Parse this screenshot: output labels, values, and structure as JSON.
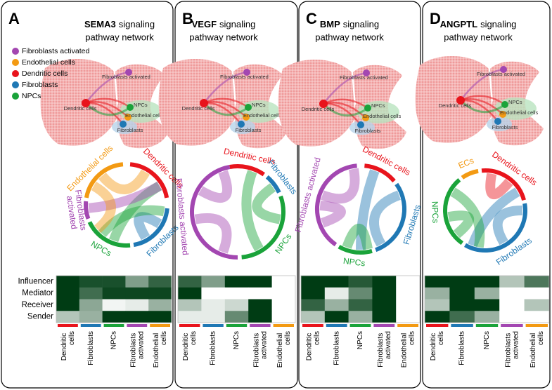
{
  "legend": [
    {
      "label": "Fibroblasts activated",
      "color": "#a347b1"
    },
    {
      "label": "Endothelial cells",
      "color": "#f39a13"
    },
    {
      "label": "Dendritic cells",
      "color": "#e8141c"
    },
    {
      "label": "Fibroblasts",
      "color": "#1f78b4"
    },
    {
      "label": "NPCs",
      "color": "#1aa33a"
    }
  ],
  "heatmap_rows": [
    "Influencer",
    "Mediator",
    "Receiver",
    "Sender"
  ],
  "panels": [
    {
      "letter": "A",
      "title_bold": "SEMA3",
      "title_rest": "signaling",
      "title_line2": "pathway network",
      "map_labels": [
        "Fibroblasts activated",
        "Dendritic cells",
        "NPCs",
        "Endothelial cells",
        "Fibroblasts"
      ],
      "chord_labels": [
        {
          "text": "Endothelial cells",
          "color": "#f39a13"
        },
        {
          "text": "Dendritic cells",
          "color": "#e8141c"
        },
        {
          "text": "Fibroblasts",
          "color": "#1f78b4"
        },
        {
          "text": "NPCs",
          "color": "#1aa33a"
        },
        {
          "text": "Fibroblasts activated",
          "color": "#a347b1"
        }
      ],
      "heatmap": {
        "columns": [
          {
            "label": "Dendritic cells",
            "color": "#e8141c"
          },
          {
            "label": "Fibroblasts",
            "color": "#1f78b4"
          },
          {
            "label": "NPCs",
            "color": "#1aa33a"
          },
          {
            "label": "Fibroblasts activated",
            "color": "#a347b1"
          },
          {
            "label": "Endothelial cells",
            "color": "#f39a13"
          }
        ],
        "values": [
          [
            1,
            0.9,
            0.9,
            0.5,
            0.8
          ],
          [
            1,
            0.75,
            0.95,
            0.95,
            0.95
          ],
          [
            1,
            0.45,
            0.05,
            0.1,
            0.4
          ],
          [
            0.3,
            0.4,
            1,
            1,
            1
          ]
        ]
      }
    },
    {
      "letter": "B",
      "title_bold": "VEGF",
      "title_rest": "signaling",
      "title_line2": "pathway network",
      "map_labels": [
        "Fibroblasts activated",
        "Dendritic cells",
        "NPCs",
        "Endothelial cells",
        "Fibroblasts"
      ],
      "chord_labels": [
        {
          "text": "Dendritic cells",
          "color": "#e8141c"
        },
        {
          "text": "Fibroblasts",
          "color": "#1f78b4"
        },
        {
          "text": "NPCs",
          "color": "#1aa33a"
        },
        {
          "text": "Fibroblasts activated",
          "color": "#a347b1"
        }
      ],
      "heatmap": {
        "columns": [
          {
            "label": "Dendritic cells",
            "color": "#e8141c"
          },
          {
            "label": "Fibroblasts",
            "color": "#1f78b4"
          },
          {
            "label": "NPCs",
            "color": "#1aa33a"
          },
          {
            "label": "Fibroblasts activated",
            "color": "#a347b1"
          },
          {
            "label": "Endothelial cells",
            "color": "#f39a13"
          }
        ],
        "values": [
          [
            0.8,
            0.5,
            1,
            1,
            0
          ],
          [
            1,
            0,
            0,
            0,
            0
          ],
          [
            0.3,
            0.1,
            0.2,
            1,
            0
          ],
          [
            0.1,
            0.1,
            0.6,
            1,
            0
          ]
        ]
      }
    },
    {
      "letter": "C",
      "title_bold": "BMP",
      "title_rest": "signaling",
      "title_line2": "pathway network",
      "map_labels": [
        "Fibroblasts activated",
        "Dendritic cells",
        "NPCs",
        "Endothelial cells",
        "Fibroblasts"
      ],
      "chord_labels": [
        {
          "text": "Dendritic cells",
          "color": "#e8141c"
        },
        {
          "text": "Fibroblasts",
          "color": "#1f78b4"
        },
        {
          "text": "NPCs",
          "color": "#1aa33a"
        },
        {
          "text": "Fibroblasts activated",
          "color": "#a347b1"
        }
      ],
      "heatmap": {
        "columns": [
          {
            "label": "Dendritic cells",
            "color": "#e8141c"
          },
          {
            "label": "Fibroblasts",
            "color": "#1f78b4"
          },
          {
            "label": "NPCs",
            "color": "#1aa33a"
          },
          {
            "label": "Fibroblasts activated",
            "color": "#a347b1"
          },
          {
            "label": "Endothelial cells",
            "color": "#f39a13"
          }
        ],
        "values": [
          [
            1,
            1,
            0.85,
            1,
            0
          ],
          [
            1,
            0.1,
            0.6,
            1,
            0
          ],
          [
            0.8,
            0.4,
            0.8,
            1,
            0
          ],
          [
            0.3,
            1,
            0.4,
            1,
            0
          ]
        ]
      }
    },
    {
      "letter": "D",
      "title_bold": "ANGPTL",
      "title_rest": "signaling",
      "title_line2": "pathway network",
      "map_labels": [
        "Fibroblasts activated",
        "Dendritic cells",
        "NPCs",
        "Endothelial cells",
        "Fibroblasts"
      ],
      "chord_labels": [
        {
          "text": "ECs",
          "color": "#f39a13"
        },
        {
          "text": "Dendritic cells",
          "color": "#e8141c"
        },
        {
          "text": "Fibroblasts",
          "color": "#1f78b4"
        },
        {
          "text": "NPCs",
          "color": "#1aa33a"
        }
      ],
      "heatmap": {
        "columns": [
          {
            "label": "Dendritic cells",
            "color": "#e8141c"
          },
          {
            "label": "Fibroblasts",
            "color": "#1f78b4"
          },
          {
            "label": "NPCs",
            "color": "#1aa33a"
          },
          {
            "label": "Fibroblasts activated",
            "color": "#a347b1"
          },
          {
            "label": "Endothelial cells",
            "color": "#f39a13"
          }
        ],
        "values": [
          [
            1,
            1,
            1,
            0.3,
            0.7
          ],
          [
            0.4,
            1,
            0.4,
            0,
            0
          ],
          [
            0.3,
            1,
            1,
            0,
            0.3
          ],
          [
            1,
            0.75,
            0.4,
            0,
            0
          ]
        ]
      }
    }
  ]
}
